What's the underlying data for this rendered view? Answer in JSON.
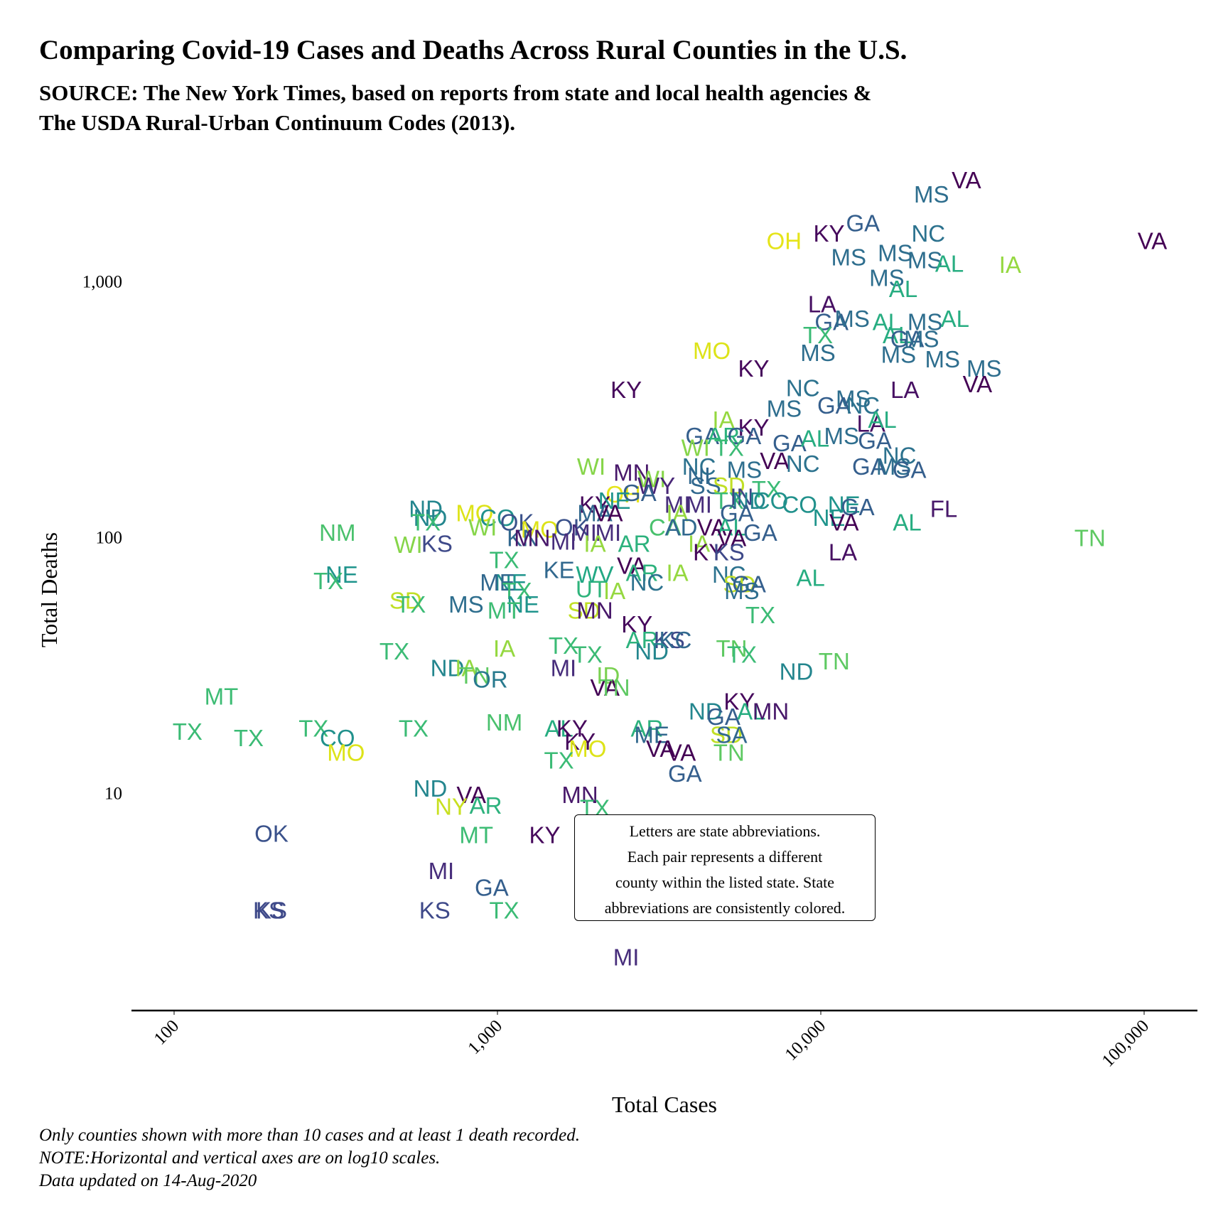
{
  "title": "Comparing Covid-19 Cases and Deaths Across Rural Counties in the U.S.",
  "subtitle_lines": [
    "SOURCE: The New York Times, based on reports from state and local health agencies &",
    "The USDA Rural-Urban Continuum Codes (2013)."
  ],
  "note_lines": [
    "Letters are state abbreviations.",
    "Each pair represents a different",
    "county within the listed state. State",
    "abbreviations are consistently colored."
  ],
  "caption_lines": [
    "Only counties shown with more than 10 cases and at least 1 death recorded.",
    "NOTE:Horizontal and vertical axes are on log10 scales.",
    "Data updated on 14-Aug-2020"
  ],
  "chart_data": {
    "type": "scatter",
    "xlabel": "Total Cases",
    "ylabel": "Total Deaths",
    "xscale": "log10",
    "yscale": "log10",
    "xlim": [
      75,
      140000
    ],
    "ylim": [
      2,
      2900
    ],
    "xticks": [
      {
        "value": 100,
        "label": "100"
      },
      {
        "value": 1000,
        "label": "1,000"
      },
      {
        "value": 10000,
        "label": "10,000"
      },
      {
        "value": 100000,
        "label": "100,000"
      }
    ],
    "yticks": [
      {
        "value": 10,
        "label": "10"
      },
      {
        "value": 100,
        "label": "100"
      },
      {
        "value": 1000,
        "label": "1,000"
      }
    ],
    "grid": false,
    "state_colors": {
      "VA": "#440154",
      "KY": "#46085c",
      "LA": "#471063",
      "MN": "#48186a",
      "MI": "#472d7b",
      "KS": "#3e4989",
      "OK": "#3b528b",
      "GA": "#355f8d",
      "MS": "#2e6e8e",
      "NC": "#2c728e",
      "OR": "#297a8e",
      "ND": "#24868e",
      "NE": "#1f948c",
      "CO": "#21918c",
      "AL": "#27ad81",
      "AR": "#2db27d",
      "WV": "#22a884",
      "UT": "#2fb47c",
      "TX": "#3bbb75",
      "MT": "#3dbc74",
      "NM": "#4ac16d",
      "TN": "#5ec962",
      "ID": "#7ad151",
      "WI": "#86d549",
      "IA": "#95d840",
      "SD": "#c0df25",
      "NY": "#c8e020",
      "MO": "#dde318",
      "OH": "#e5e419",
      "FL": "#48186a",
      "CA": "#4ac16d",
      "IN": "#414487",
      "WY": "#482677",
      "IL": "#24868e"
    },
    "points": [
      {
        "state": "VA",
        "x": 28200,
        "y": 2500
      },
      {
        "state": "MS",
        "x": 22000,
        "y": 2200
      },
      {
        "state": "GA",
        "x": 13500,
        "y": 1700
      },
      {
        "state": "KY",
        "x": 10600,
        "y": 1550
      },
      {
        "state": "NC",
        "x": 21500,
        "y": 1550
      },
      {
        "state": "OH",
        "x": 7700,
        "y": 1450
      },
      {
        "state": "VA",
        "x": 106000,
        "y": 1450
      },
      {
        "state": "MS",
        "x": 12200,
        "y": 1250
      },
      {
        "state": "MS",
        "x": 17000,
        "y": 1300
      },
      {
        "state": "MS",
        "x": 21000,
        "y": 1220
      },
      {
        "state": "AL",
        "x": 25000,
        "y": 1180
      },
      {
        "state": "IA",
        "x": 38500,
        "y": 1170
      },
      {
        "state": "MS",
        "x": 16000,
        "y": 1040
      },
      {
        "state": "AL",
        "x": 18000,
        "y": 940
      },
      {
        "state": "LA",
        "x": 10100,
        "y": 820
      },
      {
        "state": "GA",
        "x": 10800,
        "y": 700
      },
      {
        "state": "MS",
        "x": 12500,
        "y": 720
      },
      {
        "state": "AL",
        "x": 16000,
        "y": 700
      },
      {
        "state": "MS",
        "x": 21000,
        "y": 700
      },
      {
        "state": "AL",
        "x": 26000,
        "y": 720
      },
      {
        "state": "TX",
        "x": 9800,
        "y": 620
      },
      {
        "state": "AL",
        "x": 17200,
        "y": 620
      },
      {
        "state": "GA",
        "x": 18500,
        "y": 600
      },
      {
        "state": "MS",
        "x": 20500,
        "y": 600
      },
      {
        "state": "MO",
        "x": 4600,
        "y": 540
      },
      {
        "state": "MS",
        "x": 9800,
        "y": 530
      },
      {
        "state": "MS",
        "x": 17400,
        "y": 520
      },
      {
        "state": "MS",
        "x": 23800,
        "y": 500
      },
      {
        "state": "KY",
        "x": 6200,
        "y": 460
      },
      {
        "state": "MS",
        "x": 32000,
        "y": 460
      },
      {
        "state": "VA",
        "x": 30500,
        "y": 400
      },
      {
        "state": "KY",
        "x": 2500,
        "y": 380
      },
      {
        "state": "NC",
        "x": 8800,
        "y": 385
      },
      {
        "state": "LA",
        "x": 18200,
        "y": 380
      },
      {
        "state": "MS",
        "x": 12600,
        "y": 350
      },
      {
        "state": "MS",
        "x": 7700,
        "y": 320
      },
      {
        "state": "GA",
        "x": 11000,
        "y": 330
      },
      {
        "state": "NC",
        "x": 13500,
        "y": 330
      },
      {
        "state": "IA",
        "x": 5000,
        "y": 290
      },
      {
        "state": "LA",
        "x": 14300,
        "y": 280
      },
      {
        "state": "AL",
        "x": 15500,
        "y": 290
      },
      {
        "state": "KY",
        "x": 6200,
        "y": 270
      },
      {
        "state": "GA",
        "x": 4300,
        "y": 250
      },
      {
        "state": "AR",
        "x": 5000,
        "y": 250
      },
      {
        "state": "GA",
        "x": 5800,
        "y": 250
      },
      {
        "state": "GA",
        "x": 8000,
        "y": 235
      },
      {
        "state": "AL",
        "x": 9600,
        "y": 245
      },
      {
        "state": "MS",
        "x": 11600,
        "y": 250
      },
      {
        "state": "GA",
        "x": 14700,
        "y": 240
      },
      {
        "state": "WI",
        "x": 4100,
        "y": 225
      },
      {
        "state": "TX",
        "x": 5200,
        "y": 225
      },
      {
        "state": "NC",
        "x": 17500,
        "y": 210
      },
      {
        "state": "WI",
        "x": 1950,
        "y": 190
      },
      {
        "state": "VA",
        "x": 7200,
        "y": 200
      },
      {
        "state": "NC",
        "x": 8800,
        "y": 195
      },
      {
        "state": "NC",
        "x": 4200,
        "y": 190
      },
      {
        "state": "MS",
        "x": 5800,
        "y": 185
      },
      {
        "state": "GA",
        "x": 14100,
        "y": 190
      },
      {
        "state": "MS",
        "x": 16800,
        "y": 190
      },
      {
        "state": "GA",
        "x": 18800,
        "y": 185
      },
      {
        "state": "MN",
        "x": 2600,
        "y": 180
      },
      {
        "state": "NI",
        "x": 4200,
        "y": 175
      },
      {
        "state": "WI",
        "x": 3000,
        "y": 170
      },
      {
        "state": "WY",
        "x": 3100,
        "y": 160
      },
      {
        "state": "SS",
        "x": 4400,
        "y": 160
      },
      {
        "state": "SD",
        "x": 5200,
        "y": 160
      },
      {
        "state": "OH",
        "x": 2450,
        "y": 148
      },
      {
        "state": "GA",
        "x": 2750,
        "y": 150
      },
      {
        "state": "TX",
        "x": 6800,
        "y": 155
      },
      {
        "state": "KY",
        "x": 2000,
        "y": 135
      },
      {
        "state": "NE",
        "x": 2300,
        "y": 140
      },
      {
        "state": "MI",
        "x": 3600,
        "y": 135
      },
      {
        "state": "MI",
        "x": 4200,
        "y": 135
      },
      {
        "state": "TX",
        "x": 5200,
        "y": 140
      },
      {
        "state": "IN",
        "x": 5700,
        "y": 145
      },
      {
        "state": "ND",
        "x": 6000,
        "y": 140
      },
      {
        "state": "CO",
        "x": 7000,
        "y": 140
      },
      {
        "state": "CO",
        "x": 8600,
        "y": 135
      },
      {
        "state": "NE",
        "x": 11800,
        "y": 135
      },
      {
        "state": "GA",
        "x": 13000,
        "y": 132
      },
      {
        "state": "ND",
        "x": 600,
        "y": 130
      },
      {
        "state": "ND",
        "x": 620,
        "y": 120
      },
      {
        "state": "MO",
        "x": 850,
        "y": 125
      },
      {
        "state": "CO",
        "x": 1000,
        "y": 120
      },
      {
        "state": "OK",
        "x": 1150,
        "y": 115
      },
      {
        "state": "MA",
        "x": 2000,
        "y": 125
      },
      {
        "state": "VA",
        "x": 2200,
        "y": 125
      },
      {
        "state": "IA",
        "x": 3600,
        "y": 125
      },
      {
        "state": "GA",
        "x": 5500,
        "y": 125
      },
      {
        "state": "FL",
        "x": 24000,
        "y": 130
      },
      {
        "state": "TX",
        "x": 600,
        "y": 115
      },
      {
        "state": "WI",
        "x": 900,
        "y": 110
      },
      {
        "state": "NM",
        "x": 320,
        "y": 105
      },
      {
        "state": "MO",
        "x": 1350,
        "y": 108
      },
      {
        "state": "OK",
        "x": 1700,
        "y": 110
      },
      {
        "state": "CA",
        "x": 3300,
        "y": 110
      },
      {
        "state": "AD",
        "x": 3700,
        "y": 110
      },
      {
        "state": "VA",
        "x": 4600,
        "y": 110
      },
      {
        "state": "AL",
        "x": 5300,
        "y": 110
      },
      {
        "state": "NE",
        "x": 10600,
        "y": 120
      },
      {
        "state": "VA",
        "x": 11800,
        "y": 115
      },
      {
        "state": "AL",
        "x": 18500,
        "y": 115
      },
      {
        "state": "KN",
        "x": 1200,
        "y": 100
      },
      {
        "state": "MN",
        "x": 1280,
        "y": 100
      },
      {
        "state": "MI",
        "x": 1850,
        "y": 105
      },
      {
        "state": "MI",
        "x": 2200,
        "y": 105
      },
      {
        "state": "GA",
        "x": 6500,
        "y": 105
      },
      {
        "state": "IA",
        "x": 2000,
        "y": 95
      },
      {
        "state": "MI",
        "x": 1600,
        "y": 97
      },
      {
        "state": "VA",
        "x": 5300,
        "y": 100
      },
      {
        "state": "TN",
        "x": 68000,
        "y": 100
      },
      {
        "state": "WI",
        "x": 530,
        "y": 94
      },
      {
        "state": "KS",
        "x": 650,
        "y": 95
      },
      {
        "state": "AR",
        "x": 2650,
        "y": 95
      },
      {
        "state": "IA",
        "x": 4200,
        "y": 95
      },
      {
        "state": "KY",
        "x": 4500,
        "y": 88
      },
      {
        "state": "KS",
        "x": 5200,
        "y": 88
      },
      {
        "state": "LA",
        "x": 11700,
        "y": 88
      },
      {
        "state": "TX",
        "x": 1050,
        "y": 82
      },
      {
        "state": "KE",
        "x": 1550,
        "y": 75
      },
      {
        "state": "VA",
        "x": 2600,
        "y": 78
      },
      {
        "state": "IA",
        "x": 3600,
        "y": 73
      },
      {
        "state": "NC",
        "x": 5200,
        "y": 72
      },
      {
        "state": "NE",
        "x": 330,
        "y": 72
      },
      {
        "state": "TX",
        "x": 300,
        "y": 68
      },
      {
        "state": "WV",
        "x": 2000,
        "y": 72
      },
      {
        "state": "AR",
        "x": 2800,
        "y": 73
      },
      {
        "state": "AL",
        "x": 9300,
        "y": 70
      },
      {
        "state": "NE",
        "x": 1100,
        "y": 67
      },
      {
        "state": "ME",
        "x": 1000,
        "y": 67
      },
      {
        "state": "NC",
        "x": 2900,
        "y": 67
      },
      {
        "state": "SD",
        "x": 5600,
        "y": 66
      },
      {
        "state": "GA",
        "x": 6000,
        "y": 66
      },
      {
        "state": "UT",
        "x": 1950,
        "y": 63
      },
      {
        "state": "IA",
        "x": 2300,
        "y": 62
      },
      {
        "state": "TX",
        "x": 1150,
        "y": 62
      },
      {
        "state": "MS",
        "x": 5700,
        "y": 62
      },
      {
        "state": "SD",
        "x": 520,
        "y": 57
      },
      {
        "state": "TX",
        "x": 540,
        "y": 55
      },
      {
        "state": "MS",
        "x": 800,
        "y": 55
      },
      {
        "state": "NE",
        "x": 1200,
        "y": 55
      },
      {
        "state": "MT",
        "x": 1050,
        "y": 52
      },
      {
        "state": "SD",
        "x": 1850,
        "y": 52
      },
      {
        "state": "MN",
        "x": 2000,
        "y": 52
      },
      {
        "state": "TX",
        "x": 6500,
        "y": 50
      },
      {
        "state": "KY",
        "x": 2700,
        "y": 46
      },
      {
        "state": "AR",
        "x": 2800,
        "y": 40
      },
      {
        "state": "KS",
        "x": 3400,
        "y": 40
      },
      {
        "state": "KC",
        "x": 3550,
        "y": 40
      },
      {
        "state": "TX",
        "x": 1600,
        "y": 38
      },
      {
        "state": "IA",
        "x": 1050,
        "y": 37
      },
      {
        "state": "TX",
        "x": 480,
        "y": 36
      },
      {
        "state": "TN",
        "x": 5300,
        "y": 37
      },
      {
        "state": "TX",
        "x": 5700,
        "y": 35
      },
      {
        "state": "TX",
        "x": 1900,
        "y": 35
      },
      {
        "state": "ND",
        "x": 3000,
        "y": 36
      },
      {
        "state": "TN",
        "x": 11000,
        "y": 33
      },
      {
        "state": "ND",
        "x": 700,
        "y": 31
      },
      {
        "state": "IA",
        "x": 800,
        "y": 31
      },
      {
        "state": "MI",
        "x": 1600,
        "y": 31
      },
      {
        "state": "ND",
        "x": 8400,
        "y": 30
      },
      {
        "state": "TN",
        "x": 850,
        "y": 29
      },
      {
        "state": "OR",
        "x": 950,
        "y": 28
      },
      {
        "state": "ID",
        "x": 2200,
        "y": 29
      },
      {
        "state": "VA",
        "x": 2150,
        "y": 26
      },
      {
        "state": "TN",
        "x": 2300,
        "y": 26
      },
      {
        "state": "MT",
        "x": 140,
        "y": 24
      },
      {
        "state": "KY",
        "x": 5600,
        "y": 23
      },
      {
        "state": "ND",
        "x": 4400,
        "y": 21
      },
      {
        "state": "GA",
        "x": 5000,
        "y": 20
      },
      {
        "state": "AL",
        "x": 6100,
        "y": 21
      },
      {
        "state": "MN",
        "x": 7000,
        "y": 21
      },
      {
        "state": "NM",
        "x": 1050,
        "y": 19
      },
      {
        "state": "TX",
        "x": 550,
        "y": 18
      },
      {
        "state": "TX",
        "x": 270,
        "y": 18
      },
      {
        "state": "TX",
        "x": 110,
        "y": 17.5
      },
      {
        "state": "AL",
        "x": 1550,
        "y": 18
      },
      {
        "state": "KY",
        "x": 1700,
        "y": 18
      },
      {
        "state": "AR",
        "x": 2900,
        "y": 18
      },
      {
        "state": "ME",
        "x": 3000,
        "y": 17
      },
      {
        "state": "TX",
        "x": 170,
        "y": 16.5
      },
      {
        "state": "CO",
        "x": 320,
        "y": 16.5
      },
      {
        "state": "KY",
        "x": 1800,
        "y": 16
      },
      {
        "state": "SD",
        "x": 5100,
        "y": 17
      },
      {
        "state": "SA",
        "x": 5300,
        "y": 17
      },
      {
        "state": "MO",
        "x": 1900,
        "y": 15
      },
      {
        "state": "VA",
        "x": 3200,
        "y": 15
      },
      {
        "state": "VA",
        "x": 3700,
        "y": 14.5
      },
      {
        "state": "TN",
        "x": 5200,
        "y": 14.5
      },
      {
        "state": "MO",
        "x": 340,
        "y": 14.5
      },
      {
        "state": "TX",
        "x": 1550,
        "y": 13.5
      },
      {
        "state": "GA",
        "x": 3800,
        "y": 12
      },
      {
        "state": "ND",
        "x": 620,
        "y": 10.5
      },
      {
        "state": "VA",
        "x": 830,
        "y": 9.9
      },
      {
        "state": "MN",
        "x": 1800,
        "y": 9.9
      },
      {
        "state": "NY",
        "x": 720,
        "y": 8.9
      },
      {
        "state": "AR",
        "x": 920,
        "y": 9.0
      },
      {
        "state": "TX",
        "x": 2000,
        "y": 8.8
      },
      {
        "state": "OK",
        "x": 200,
        "y": 7.0
      },
      {
        "state": "MT",
        "x": 860,
        "y": 6.9
      },
      {
        "state": "KY",
        "x": 1400,
        "y": 6.9
      },
      {
        "state": "MI",
        "x": 670,
        "y": 5.0
      },
      {
        "state": "GA",
        "x": 960,
        "y": 4.3
      },
      {
        "state": "KS",
        "x": 200,
        "y": 3.5
      },
      {
        "state": "KS",
        "x": 196,
        "y": 3.5
      },
      {
        "state": "KS",
        "x": 640,
        "y": 3.5
      },
      {
        "state": "TX",
        "x": 1050,
        "y": 3.5
      },
      {
        "state": "MI",
        "x": 2500,
        "y": 2.3
      }
    ]
  }
}
